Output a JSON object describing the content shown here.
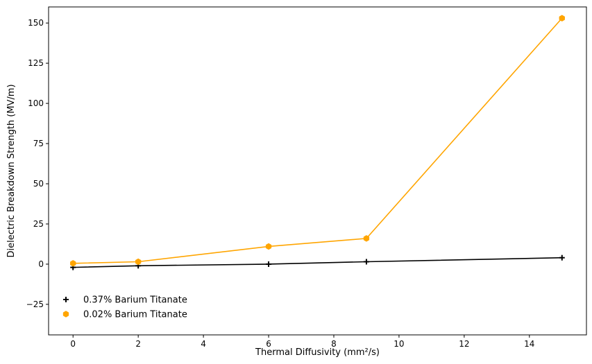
{
  "chart_data": {
    "type": "line",
    "xlabel": "Thermal Diffusivity (mm²/s)",
    "ylabel": "Dielectric Breakdown Strength (MV/m)",
    "xlim": [
      -0.75,
      15.75
    ],
    "ylim": [
      -44,
      160
    ],
    "x_ticks": [
      0,
      2,
      4,
      6,
      8,
      10,
      12,
      14
    ],
    "x_tick_labels": [
      "0",
      "2",
      "4",
      "6",
      "8",
      "10",
      "12",
      "14"
    ],
    "y_ticks": [
      -25,
      0,
      25,
      50,
      75,
      100,
      125,
      150
    ],
    "y_tick_labels": [
      "−25",
      "0",
      "25",
      "50",
      "75",
      "100",
      "125",
      "150"
    ],
    "grid": false,
    "legend_position": "bottom-left",
    "series": [
      {
        "name": "0.37% Barium Titanate",
        "color": "#000000",
        "marker": "plus",
        "x": [
          0,
          2,
          6,
          9,
          15
        ],
        "y": [
          -2,
          -1,
          0,
          1.5,
          4
        ]
      },
      {
        "name": "0.02% Barium Titanate",
        "color": "#FFA500",
        "marker": "hexagon",
        "x": [
          0,
          2,
          6,
          9,
          15
        ],
        "y": [
          0.5,
          1.5,
          11,
          16,
          153
        ]
      }
    ]
  }
}
